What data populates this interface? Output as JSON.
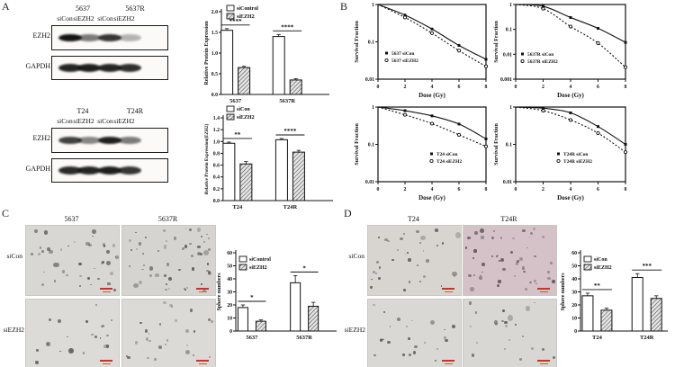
{
  "colors": {
    "scale_bar": "#c5352e",
    "band": "#141414",
    "axis": "#111111",
    "hatch_fill": "#e4e4e4"
  },
  "panels": {
    "A": {
      "label": "A",
      "blots": [
        {
          "groups": [
            "5637",
            "5637R"
          ],
          "lanes": [
            "siCon",
            "siEZH2",
            "siCon",
            "siEZH2"
          ],
          "rows": [
            {
              "label": "EZH2",
              "bands": [
                1.0,
                0.55,
                0.85,
                0.3
              ]
            },
            {
              "label": "GAPDH",
              "bands": [
                0.92,
                0.95,
                0.92,
                0.88
              ]
            }
          ]
        },
        {
          "groups": [
            "T24",
            "T24R"
          ],
          "lanes": [
            "siCon",
            "siEZH2",
            "siCon",
            "siEZH2"
          ],
          "rows": [
            {
              "label": "EZH2",
              "bands": [
                0.8,
                0.5,
                0.95,
                0.55
              ]
            },
            {
              "label": "GAPDH",
              "bands": [
                0.9,
                0.92,
                0.95,
                0.85
              ]
            }
          ]
        }
      ]
    },
    "B": {
      "label": "B"
    },
    "C": {
      "label": "C",
      "columns": [
        "5637",
        "5637R"
      ],
      "row_labels": [
        "siCon",
        "siEZH2"
      ],
      "images": [
        {
          "dots": 40,
          "bg": "#d8d7d3"
        },
        {
          "dots": 55,
          "bg": "#d5d4d0"
        },
        {
          "dots": 20,
          "bg": "#dcdbd7"
        },
        {
          "dots": 27,
          "bg": "#dbdad6"
        }
      ]
    },
    "D": {
      "label": "D",
      "columns": [
        "T24",
        "T24R"
      ],
      "row_labels": [
        "siCon",
        "siEZH2"
      ],
      "images": [
        {
          "dots": 34,
          "bg": "#d8d5d1"
        },
        {
          "dots": 48,
          "bg": "#d5c2c9"
        },
        {
          "dots": 24,
          "bg": "#dad8d4"
        },
        {
          "dots": 22,
          "bg": "#d9d7d4"
        }
      ]
    }
  },
  "chart_data": [
    {
      "id": "bar-ezh2-5637",
      "type": "bar",
      "categories": [
        "5637",
        "5637R"
      ],
      "series": [
        {
          "name": "siControl",
          "values": [
            1.55,
            1.4
          ],
          "errors": [
            0.04,
            0.05
          ],
          "style": "open"
        },
        {
          "name": "siEZH2",
          "values": [
            0.65,
            0.35
          ],
          "errors": [
            0.03,
            0.03
          ],
          "style": "hatch"
        }
      ],
      "legend": [
        "siControl",
        "siEZH2"
      ],
      "ylabel": "Relative Protein Expression",
      "ylim": [
        0,
        2
      ],
      "ytick_labels": [
        "0.0",
        "0.5",
        "1.0",
        "1.5",
        "2.0"
      ],
      "significance": [
        "****",
        "****"
      ]
    },
    {
      "id": "bar-ezh2-t24",
      "type": "bar",
      "categories": [
        "T24",
        "T24R"
      ],
      "series": [
        {
          "name": "siCon",
          "values": [
            0.97,
            1.03
          ],
          "errors": [
            0.02,
            0.02
          ],
          "style": "open"
        },
        {
          "name": "siEZH2",
          "values": [
            0.62,
            0.82
          ],
          "errors": [
            0.04,
            0.03
          ],
          "style": "hatch"
        }
      ],
      "legend": [
        "siCon",
        "siEZH2"
      ],
      "ylabel": "Relative Protein Expression(EZH2)",
      "ylim": [
        0,
        1.4
      ],
      "ytick_labels": [
        "0.0",
        "0.2",
        "0.4",
        "0.6",
        "0.8",
        "1.0",
        "1.2",
        "1.4"
      ],
      "significance": [
        "**",
        "****"
      ]
    },
    {
      "id": "survival-5637",
      "type": "line",
      "x": [
        0,
        2,
        4,
        6,
        8
      ],
      "xticks": [
        0,
        2,
        4,
        6,
        8
      ],
      "xlabel": "Dose (Gy)",
      "ylabel": "Survival Fraction",
      "yticks": [
        "1",
        "0.1",
        "0.01"
      ],
      "series": [
        {
          "name": "5637 siCon",
          "values": [
            1,
            0.52,
            0.22,
            0.08,
            0.034
          ],
          "marker": "filled",
          "line": "solid"
        },
        {
          "name": "5637 siEZH2",
          "values": [
            1,
            0.45,
            0.17,
            0.058,
            0.022
          ],
          "marker": "open",
          "line": "dotted"
        }
      ],
      "legend_pos": "bottom-left"
    },
    {
      "id": "survival-5637R",
      "type": "line",
      "x": [
        0,
        2,
        4,
        6,
        8
      ],
      "xticks": [
        0,
        2,
        4,
        6,
        8
      ],
      "xlabel": "Dose (Gy)",
      "ylabel": "Survival Fraction",
      "yticks": [
        "1",
        "0.1",
        "0.01",
        "0.001"
      ],
      "series": [
        {
          "name": "5637R siCon",
          "values": [
            1,
            0.85,
            0.3,
            0.11,
            0.03
          ],
          "marker": "filled",
          "line": "solid"
        },
        {
          "name": "5637R siEZH2",
          "values": [
            1,
            0.68,
            0.13,
            0.028,
            0.003
          ],
          "marker": "open",
          "line": "dotted"
        }
      ],
      "legend_pos": "bottom-left"
    },
    {
      "id": "survival-t24",
      "type": "line",
      "x": [
        0,
        2,
        4,
        6,
        8
      ],
      "xticks": [
        0,
        2,
        4,
        6,
        8
      ],
      "xlabel": "Dose (Gy)",
      "ylabel": "Survival Fraction",
      "yticks": [
        "1",
        "0.1",
        "0.01"
      ],
      "series": [
        {
          "name": "T24 siCon",
          "values": [
            1,
            0.8,
            0.58,
            0.35,
            0.14
          ],
          "marker": "filled",
          "line": "solid"
        },
        {
          "name": "T24 siEZH2",
          "values": [
            1,
            0.62,
            0.36,
            0.18,
            0.088
          ],
          "marker": "open",
          "line": "dotted"
        }
      ],
      "legend_pos": "bottom-right"
    },
    {
      "id": "survival-t24R",
      "type": "line",
      "x": [
        0,
        2,
        4,
        6,
        8
      ],
      "xticks": [
        0,
        2,
        4,
        6,
        8
      ],
      "xlabel": "Dose (Gy)",
      "ylabel": "Survival Fraction",
      "yticks": [
        "1",
        "0.1",
        "0.01"
      ],
      "series": [
        {
          "name": "T24R siCon",
          "values": [
            1,
            0.93,
            0.7,
            0.3,
            0.1
          ],
          "marker": "filled",
          "line": "solid"
        },
        {
          "name": "T24R siEZH2",
          "values": [
            1,
            0.8,
            0.45,
            0.2,
            0.062
          ],
          "marker": "open",
          "line": "dotted"
        }
      ],
      "legend_pos": "bottom-right"
    },
    {
      "id": "spheres-5637",
      "type": "bar",
      "categories": [
        "5637",
        "5637R"
      ],
      "series": [
        {
          "name": "siControl",
          "values": [
            18,
            37
          ],
          "errors": [
            2,
            5.5
          ],
          "style": "open"
        },
        {
          "name": "siEZH2",
          "values": [
            7.5,
            19
          ],
          "errors": [
            1,
            3
          ],
          "style": "hatch"
        }
      ],
      "legend": [
        "siControl",
        "siEZH2"
      ],
      "ylabel": "Sphere numbers",
      "ylim": [
        0,
        60
      ],
      "ytick_labels": [
        "0",
        "10",
        "20",
        "30",
        "40",
        "50",
        "60"
      ],
      "significance": [
        "*",
        "*"
      ]
    },
    {
      "id": "spheres-t24",
      "type": "bar",
      "categories": [
        "T24",
        "T24R"
      ],
      "series": [
        {
          "name": "siCon",
          "values": [
            27,
            41
          ],
          "errors": [
            2,
            3
          ],
          "style": "open"
        },
        {
          "name": "siEZH2",
          "values": [
            16,
            25
          ],
          "errors": [
            1.5,
            2
          ],
          "style": "hatch"
        }
      ],
      "legend": [
        "siCon",
        "siEZH2"
      ],
      "ylabel": "Sphere numbers",
      "ylim": [
        0,
        60
      ],
      "ytick_labels": [
        "0",
        "10",
        "20",
        "30",
        "40",
        "50",
        "60"
      ],
      "significance": [
        "**",
        "***"
      ]
    }
  ]
}
